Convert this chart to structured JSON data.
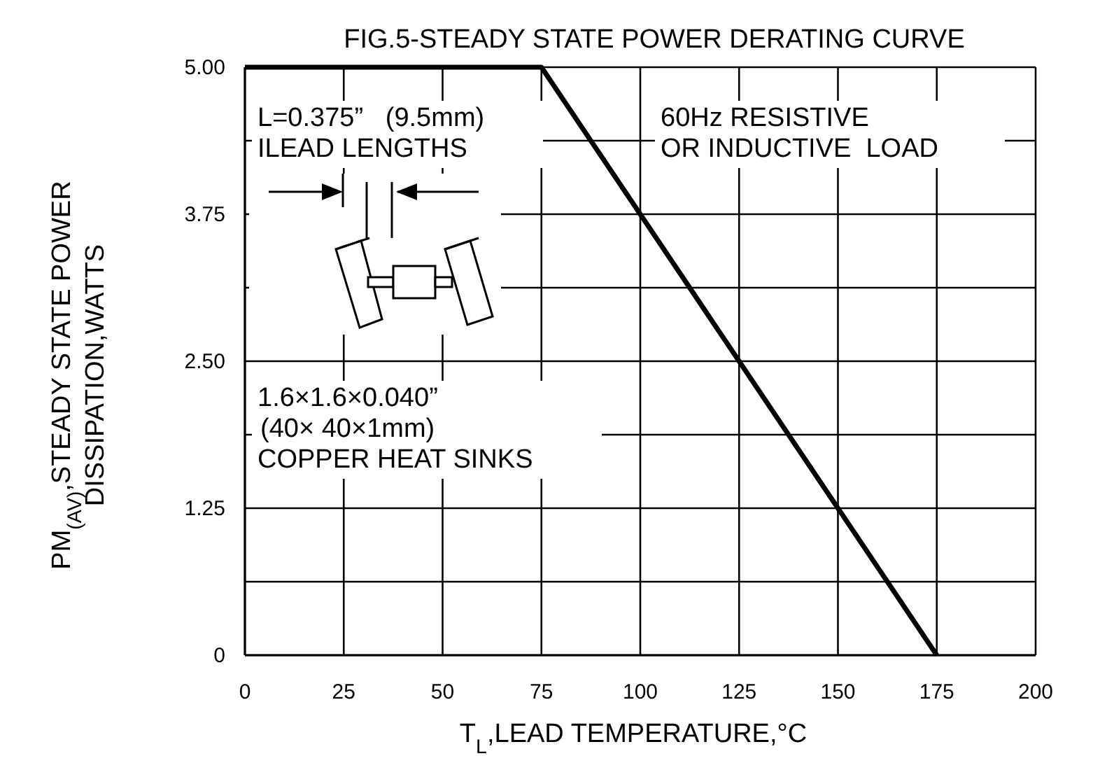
{
  "chart_data": {
    "type": "line",
    "title": "FIG.5-STEADY STATE POWER DERATING CURVE",
    "xlabel": "T$_{L}$,LEAD TEMPERATURE,°C",
    "ylabel": "PM$_{(AV)}$,STEADY STATE POWER\nDISSIPATION,WATTS",
    "x": [
      0,
      75,
      175
    ],
    "series": [
      {
        "color": "#000000",
        "values": [
          5,
          5,
          0
        ]
      }
    ],
    "xlim": [
      0,
      200
    ],
    "ylim": [
      0,
      5
    ],
    "xticks": [
      0,
      25,
      50,
      75,
      100,
      125,
      150,
      175,
      200
    ],
    "yticks": [
      {
        "value": 0,
        "label": "0"
      },
      {
        "value": 0.625,
        "label": null
      },
      {
        "value": 1.25,
        "label": "1.25"
      },
      {
        "value": 1.875,
        "label": null
      },
      {
        "value": 2.5,
        "label": "2.50"
      },
      {
        "value": 3.125,
        "label": null
      },
      {
        "value": 3.75,
        "label": "3.75"
      },
      {
        "value": 4.375,
        "label": null
      },
      {
        "value": 5,
        "label": "5.00"
      }
    ],
    "grid": true,
    "marker": "none",
    "line_style": "solid",
    "annotations": [
      "L=0.375”   (9.5mm)\nILEAD LENGTHS",
      "60Hz RESISTIVE\nOR INDUCTIVE  LOAD",
      "1.6×1.6×0.040”\n(40× 40×1mm)\nCOPPER HEAT SINKS"
    ]
  }
}
